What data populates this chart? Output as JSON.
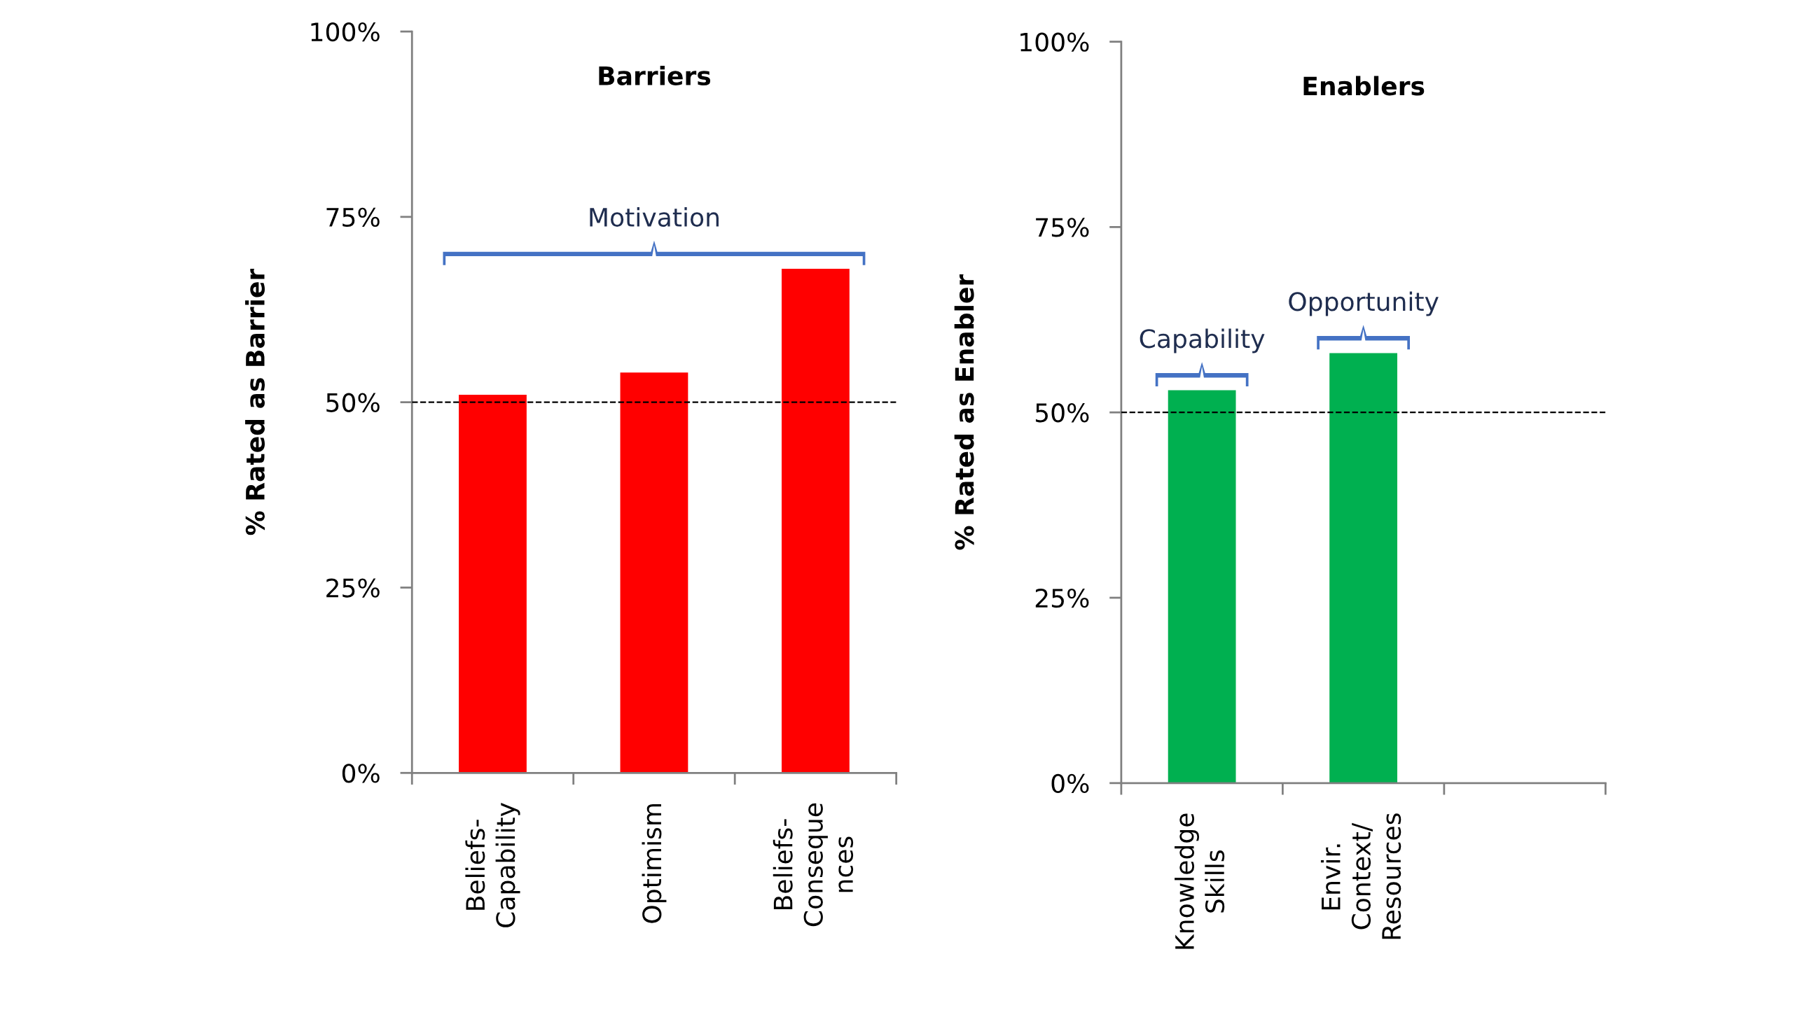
{
  "chart_data": [
    {
      "type": "bar",
      "title": "Barriers",
      "ylabel": "% Rated as Barrier",
      "categories": [
        "Beliefs-\nCapability",
        "Optimism",
        "Beliefs-\nConseque\nnces"
      ],
      "values": [
        51,
        54,
        68
      ],
      "color": "#ff0000",
      "ylim": [
        0,
        100
      ],
      "yticks": [
        {
          "value": 0,
          "label": "0%"
        },
        {
          "value": 25,
          "label": "25%"
        },
        {
          "value": 50,
          "label": "50%"
        },
        {
          "value": 75,
          "label": "75%"
        },
        {
          "value": 100,
          "label": "100%"
        }
      ],
      "grid": false,
      "ref_lines": [
        {
          "axis": "y",
          "value": 50,
          "color": "#000000",
          "line_style": "dashed"
        }
      ],
      "annotations": [
        "Motivation"
      ]
    },
    {
      "type": "bar",
      "title": "Enablers",
      "ylabel": "% Rated as Enabler",
      "categories": [
        "Knowledge\nSkills",
        "Envir.\nContext/\nResources",
        null
      ],
      "values": [
        53,
        58,
        null
      ],
      "color": "#00b050",
      "ylim": [
        0,
        100
      ],
      "yticks": [
        {
          "value": 0,
          "label": "0%"
        },
        {
          "value": 25,
          "label": "25%"
        },
        {
          "value": 50,
          "label": "50%"
        },
        {
          "value": 75,
          "label": "75%"
        },
        {
          "value": 100,
          "label": "100%"
        }
      ],
      "grid": false,
      "ref_lines": [
        {
          "axis": "y",
          "value": 50,
          "color": "#000000",
          "line_style": "dashed"
        }
      ],
      "annotations": [
        "Capability",
        "Opportunity"
      ]
    }
  ]
}
